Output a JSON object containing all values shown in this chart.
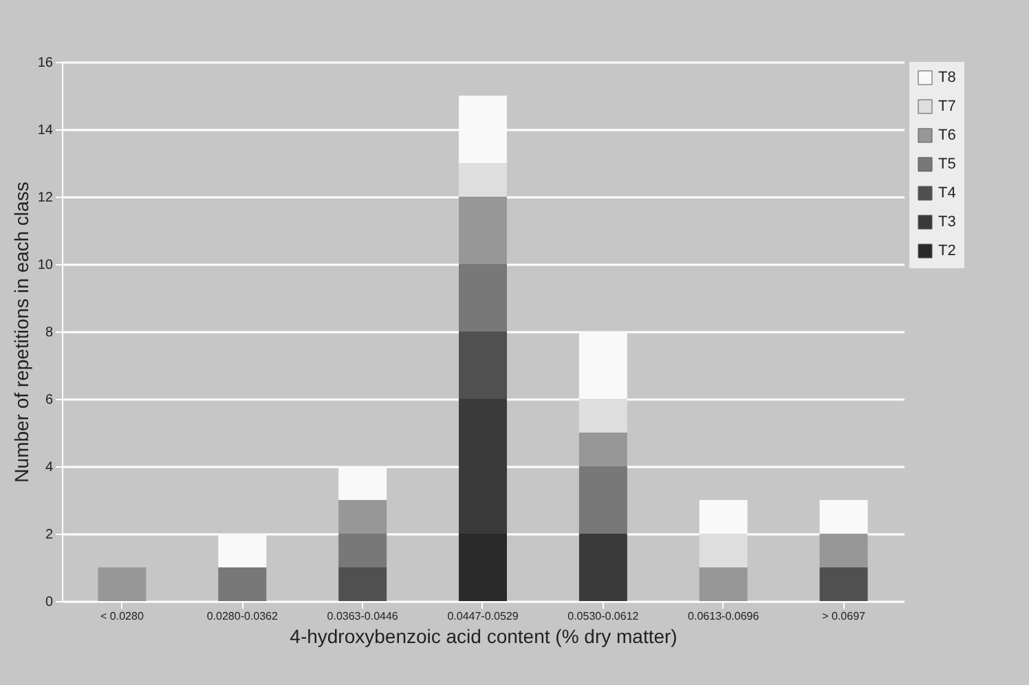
{
  "chart_data": {
    "type": "bar",
    "stacked": true,
    "xlabel": "4-hydroxybenzoic acid content (% dry matter)",
    "ylabel": "Number of repetitions in each class",
    "categories": [
      "< 0.0280",
      "0.0280-0.0362",
      "0.0363-0.0446",
      "0.0447-0.0529",
      "0.0530-0.0612",
      "0.0613-0.0696",
      "> 0.0697"
    ],
    "series": [
      {
        "name": "T2",
        "color": "#2a2a2a",
        "values": [
          null,
          null,
          null,
          2,
          null,
          null,
          null
        ]
      },
      {
        "name": "T3",
        "color": "#3a3a3a",
        "values": [
          null,
          null,
          null,
          4,
          2,
          null,
          null
        ]
      },
      {
        "name": "T4",
        "color": "#505050",
        "values": [
          null,
          null,
          1,
          2,
          null,
          null,
          1
        ]
      },
      {
        "name": "T5",
        "color": "#787878",
        "values": [
          null,
          1,
          1,
          2,
          2,
          null,
          null
        ]
      },
      {
        "name": "T6",
        "color": "#979797",
        "values": [
          1,
          null,
          1,
          2,
          1,
          1,
          1
        ]
      },
      {
        "name": "T7",
        "color": "#dedede",
        "values": [
          null,
          null,
          null,
          1,
          1,
          1,
          null
        ]
      },
      {
        "name": "T8",
        "color": "#f9f9f9",
        "values": [
          null,
          1,
          1,
          2,
          2,
          1,
          1
        ]
      }
    ],
    "ylim": [
      0,
      16
    ],
    "yticks": [
      0,
      2,
      4,
      6,
      8,
      10,
      12,
      14,
      16
    ],
    "grid": "y",
    "legend": "right"
  }
}
